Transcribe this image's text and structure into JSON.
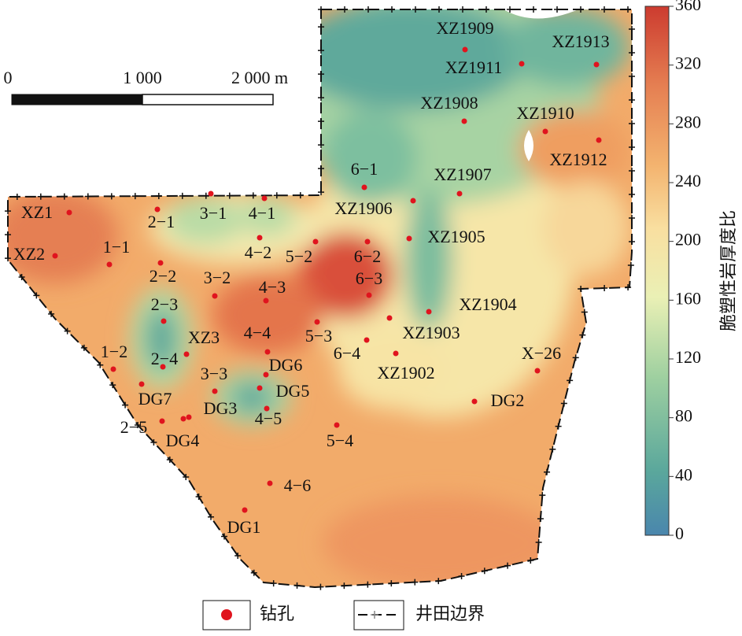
{
  "map": {
    "scale_bar": {
      "labels": [
        "0",
        "1 000",
        "2 000 m"
      ]
    },
    "colorbar": {
      "title": "脆塑性岩厚度比",
      "ylim": [
        0,
        360
      ],
      "yticks": [
        0,
        40,
        80,
        120,
        160,
        200,
        240,
        280,
        320,
        360
      ]
    },
    "boreholes": [
      "XZ1909",
      "XZ1913",
      "XZ1911",
      "XZ1908",
      "XZ1910",
      "XZ1912",
      "6−1",
      "XZ1907",
      "XZ1906",
      "XZ1905",
      "XZ1904",
      "XZ1903",
      "XZ1902",
      "6−4",
      "X−26",
      "DG2",
      "XZ1",
      "XZ2",
      "1−1",
      "2−1",
      "3−1",
      "4−1",
      "4−2",
      "5−2",
      "6−2",
      "6−3",
      "2−2",
      "3−2",
      "4−3",
      "2−3",
      "4−4",
      "5−3",
      "XZ3",
      "1−2",
      "2−4",
      "DG6",
      "3−3",
      "DG5",
      "DG7",
      "DG3",
      "4−5",
      "2−5",
      "DG4",
      "5−4",
      "4−6",
      "DG1"
    ],
    "legend": [
      "钻孔",
      "井田边界"
    ]
  }
}
